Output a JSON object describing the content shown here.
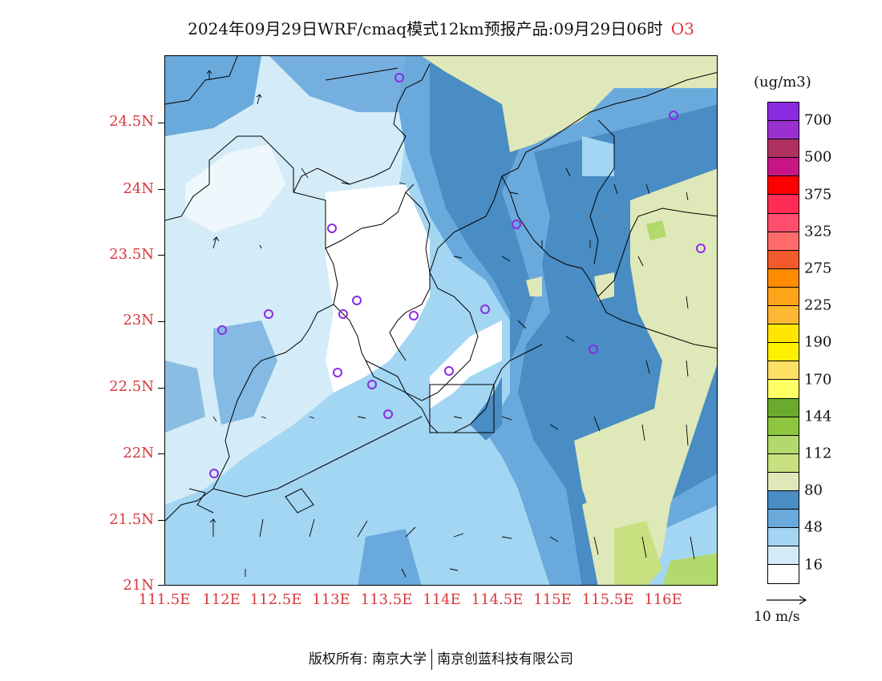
{
  "title": {
    "text": "2024年09月29日WRF/cmaq模式12km预报产品:09月29日06时",
    "species": "O3"
  },
  "axes": {
    "x_ticks": [
      "111.5E",
      "112E",
      "112.5E",
      "113E",
      "113.5E",
      "114E",
      "114.5E",
      "115E",
      "115.5E",
      "116E"
    ],
    "y_ticks": [
      "24.5N",
      "24N",
      "23.5N",
      "23N",
      "22.5N",
      "22N",
      "21.5N",
      "21N"
    ]
  },
  "colorbar": {
    "unit": "(ug/m3)",
    "colors": [
      "#8a2be2",
      "#9b30d0",
      "#b03060",
      "#c71585",
      "#ff0000",
      "#ff2d55",
      "#ff4d6d",
      "#ff6b6b",
      "#f25a2c",
      "#ff8c00",
      "#ffa31a",
      "#ffb833",
      "#ffe600",
      "#fff000",
      "#ffe066",
      "#ffff66",
      "#6aab2e",
      "#8ec640",
      "#b2d96b",
      "#c8e07f",
      "#dfe8b8",
      "#4a8cc4",
      "#6aa9dc",
      "#a3d6f3",
      "#d4ecf8",
      "#ffffff"
    ],
    "labels": [
      "700",
      "500",
      "375",
      "325",
      "275",
      "225",
      "190",
      "170",
      "144",
      "112",
      "80",
      "48",
      "16"
    ]
  },
  "wind": {
    "reference_label": "10 m/s"
  },
  "stations": {
    "icon": "circle-outline",
    "color": "#8a2be2"
  },
  "footer": {
    "left": "版权所有: 南京大学",
    "right": "南京创蓝科技有限公司"
  }
}
